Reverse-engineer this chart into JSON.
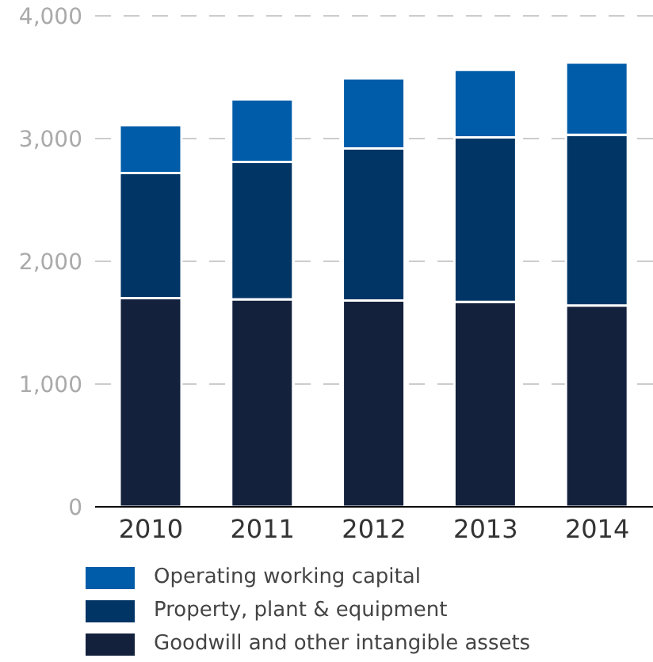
{
  "chart_data": {
    "type": "bar",
    "stacked": true,
    "categories": [
      "2010",
      "2011",
      "2012",
      "2013",
      "2014"
    ],
    "series": [
      {
        "name": "Goodwill and other intangible assets",
        "color": "#14213d",
        "values": [
          1700,
          1690,
          1680,
          1670,
          1640
        ]
      },
      {
        "name": "Property, plant & equipment",
        "color": "#003566",
        "values": [
          1020,
          1120,
          1240,
          1340,
          1390
        ]
      },
      {
        "name": "Operating working capital",
        "color": "#005ca8",
        "values": [
          390,
          510,
          570,
          550,
          590
        ]
      }
    ],
    "ylim": [
      0,
      4000
    ],
    "yticks": [
      {
        "value": 0,
        "label": "0"
      },
      {
        "value": 1000,
        "label": "1,000"
      },
      {
        "value": 2000,
        "label": "2,000"
      },
      {
        "value": 3000,
        "label": "3,000"
      },
      {
        "value": 4000,
        "label": "4,000"
      }
    ],
    "grid": "y",
    "legend": "bottom"
  }
}
